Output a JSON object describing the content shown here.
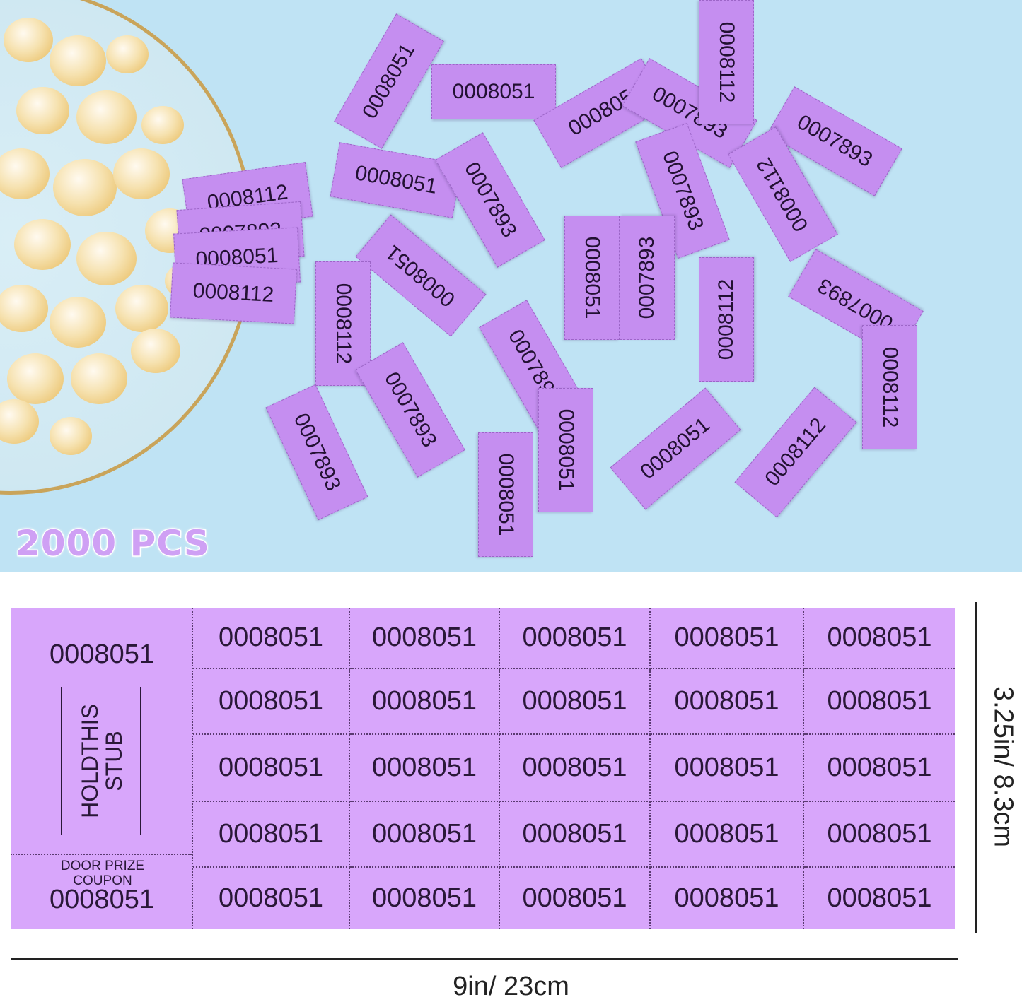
{
  "photo": {
    "badge": "2000 PCS",
    "tickets": [
      "0008051",
      "0008051",
      "000805",
      "0007893",
      "0008112",
      "0007893",
      "0008051",
      "0007893",
      "0007893",
      "0008112",
      "0008051",
      "0008112",
      "0008051",
      "0007893",
      "0008112",
      "0007893",
      "0008112",
      "0007893",
      "0008051",
      "0007893",
      "0007893",
      "0008051",
      "0008051",
      "0008112"
    ],
    "bowl_tickets": [
      "0008112",
      "0007893",
      "0008051",
      "0008112"
    ]
  },
  "sheet": {
    "stub_top_number": "0008051",
    "stub_text_line1": "HOLDTHIS",
    "stub_text_line2": "STUB",
    "coupon_label": "DOOR PRIZE COUPON",
    "coupon_number": "0008051",
    "grid": [
      [
        "0008051",
        "0008051",
        "0008051",
        "0008051",
        "0008051"
      ],
      [
        "0008051",
        "0008051",
        "0008051",
        "0008051",
        "0008051"
      ],
      [
        "0008051",
        "0008051",
        "0008051",
        "0008051",
        "0008051"
      ],
      [
        "0008051",
        "0008051",
        "0008051",
        "0008051",
        "0008051"
      ],
      [
        "0008051",
        "0008051",
        "0008051",
        "0008051",
        "0008051"
      ]
    ],
    "color": "#d8a6fb"
  },
  "dimensions": {
    "width": "9in/ 23cm",
    "height": "3.25in/ 8.3cm"
  }
}
